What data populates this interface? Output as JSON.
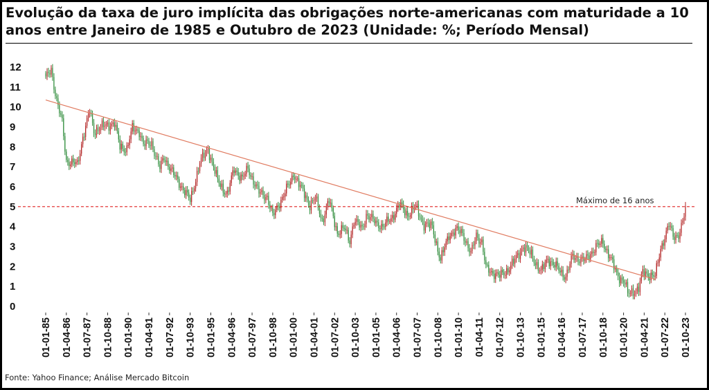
{
  "title": "Evolução da taxa de juro implícita das obrigações norte-americanas com maturidade a 10 anos entre Janeiro de 1985 e Outubro de 2023 (Unidade: %; Período Mensal)",
  "source": "Fonte: Yahoo Finance; Análise Mercado Bitcoin",
  "chart_data": {
    "type": "candlestick",
    "title": "Evolução da taxa de juro implícita das obrigações norte-americanas com maturidade a 10 anos entre Janeiro de 1985 e Outubro de 2023 (Unidade: %; Período Mensal)",
    "ylim": [
      0,
      12
    ],
    "yticks": [
      "0",
      "1",
      "2",
      "3",
      "4",
      "5",
      "6",
      "7",
      "8",
      "9",
      "10",
      "11",
      "12"
    ],
    "xticks": [
      "01-01-85",
      "01-04-86",
      "01-07-87",
      "01-10-88",
      "01-01-90",
      "01-04-91",
      "01-07-92",
      "01-10-93",
      "01-01-95",
      "01-04-96",
      "01-07-97",
      "01-10-98",
      "01-01-00",
      "01-04-01",
      "01-07-02",
      "01-10-03",
      "01-01-05",
      "01-04-06",
      "01-07-07",
      "01-10-08",
      "01-01-10",
      "01-04-11",
      "01-07-12",
      "01-10-13",
      "01-01-15",
      "01-04-16",
      "01-07-17",
      "01-10-18",
      "01-01-20",
      "01-04-21",
      "01-07-22",
      "01-10-23"
    ],
    "up_color": "#2e8b3a",
    "down_color": "#b22222",
    "trendline": {
      "start": [
        "1985-01",
        10.35
      ],
      "end": [
        "2021-12",
        1.35
      ],
      "color": "#e07a5f"
    },
    "reference_line": {
      "value": 5.0,
      "label": "Máximo de 16 anos",
      "color": "#e02020",
      "style": "dashed"
    },
    "monthly_close_anchors": [
      [
        "1985-01",
        11.4
      ],
      [
        "1985-05",
        11.9
      ],
      [
        "1985-09",
        10.3
      ],
      [
        "1986-01",
        9.2
      ],
      [
        "1986-04",
        7.3
      ],
      [
        "1986-12",
        7.1
      ],
      [
        "1987-04",
        8.5
      ],
      [
        "1987-09",
        9.8
      ],
      [
        "1987-12",
        8.8
      ],
      [
        "1988-06",
        9.0
      ],
      [
        "1989-03",
        9.2
      ],
      [
        "1989-07",
        8.0
      ],
      [
        "1989-12",
        7.9
      ],
      [
        "1990-04",
        8.9
      ],
      [
        "1990-09",
        8.8
      ],
      [
        "1990-12",
        8.1
      ],
      [
        "1991-06",
        8.2
      ],
      [
        "1991-12",
        6.9
      ],
      [
        "1992-03",
        7.5
      ],
      [
        "1992-10",
        6.6
      ],
      [
        "1993-04",
        6.0
      ],
      [
        "1993-10",
        5.3
      ],
      [
        "1994-05",
        7.2
      ],
      [
        "1994-11",
        7.9
      ],
      [
        "1995-06",
        6.3
      ],
      [
        "1996-01",
        5.6
      ],
      [
        "1996-06",
        6.9
      ],
      [
        "1996-12",
        6.4
      ],
      [
        "1997-04",
        6.9
      ],
      [
        "1997-12",
        5.7
      ],
      [
        "1998-06",
        5.5
      ],
      [
        "1998-10",
        4.5
      ],
      [
        "1999-03",
        5.2
      ],
      [
        "1999-12",
        6.4
      ],
      [
        "2000-01",
        6.7
      ],
      [
        "2000-06",
        6.0
      ],
      [
        "2001-01",
        5.1
      ],
      [
        "2001-05",
        5.4
      ],
      [
        "2001-10",
        4.3
      ],
      [
        "2002-03",
        5.3
      ],
      [
        "2002-09",
        3.7
      ],
      [
        "2003-02",
        3.9
      ],
      [
        "2003-06",
        3.3
      ],
      [
        "2003-09",
        4.3
      ],
      [
        "2004-03",
        3.9
      ],
      [
        "2004-06",
        4.6
      ],
      [
        "2005-01",
        4.2
      ],
      [
        "2005-06",
        4.0
      ],
      [
        "2005-12",
        4.4
      ],
      [
        "2006-06",
        5.1
      ],
      [
        "2006-12",
        4.6
      ],
      [
        "2007-06",
        5.0
      ],
      [
        "2007-12",
        4.1
      ],
      [
        "2008-06",
        4.0
      ],
      [
        "2008-12",
        2.3
      ],
      [
        "2009-06",
        3.6
      ],
      [
        "2009-12",
        3.8
      ],
      [
        "2010-04",
        3.7
      ],
      [
        "2010-10",
        2.6
      ],
      [
        "2011-02",
        3.6
      ],
      [
        "2011-06",
        3.2
      ],
      [
        "2011-09",
        1.9
      ],
      [
        "2012-07",
        1.5
      ],
      [
        "2012-12",
        1.8
      ],
      [
        "2013-05",
        2.2
      ],
      [
        "2013-12",
        3.0
      ],
      [
        "2014-06",
        2.6
      ],
      [
        "2015-01",
        1.7
      ],
      [
        "2015-06",
        2.4
      ],
      [
        "2016-01",
        1.9
      ],
      [
        "2016-07",
        1.5
      ],
      [
        "2016-12",
        2.5
      ],
      [
        "2017-09",
        2.3
      ],
      [
        "2018-05",
        3.0
      ],
      [
        "2018-10",
        3.2
      ],
      [
        "2019-03",
        2.5
      ],
      [
        "2019-08",
        1.6
      ],
      [
        "2020-02",
        1.2
      ],
      [
        "2020-04",
        0.6
      ],
      [
        "2020-12",
        0.9
      ],
      [
        "2021-03",
        1.7
      ],
      [
        "2021-12",
        1.5
      ],
      [
        "2022-04",
        2.9
      ],
      [
        "2022-10",
        4.1
      ],
      [
        "2023-01",
        3.5
      ],
      [
        "2023-05",
        3.6
      ],
      [
        "2023-08",
        4.2
      ],
      [
        "2023-10",
        4.9
      ]
    ]
  }
}
